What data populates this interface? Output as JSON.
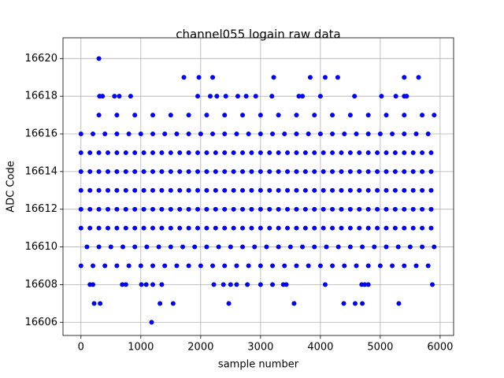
{
  "chart_data": {
    "type": "scatter",
    "title": "channel055 logain raw data",
    "x_label": "sample number",
    "y_label": "ADC Code",
    "color": "#0000ff",
    "grid": true,
    "xlim": [
      -300,
      6225
    ],
    "ylim": [
      16605.3,
      16621.1
    ],
    "xticks": [
      0,
      1000,
      2000,
      3000,
      4000,
      5000,
      6000
    ],
    "yticks": [
      16606,
      16608,
      16610,
      16612,
      16614,
      16616,
      16618,
      16620
    ],
    "x": [
      0,
      150,
      300,
      450,
      600,
      750,
      900,
      1050,
      1200,
      1350,
      1500,
      1650,
      1800,
      1950,
      2100,
      2250,
      2400,
      2550,
      2700,
      2850,
      3000,
      3150,
      3300,
      3450,
      3600,
      3750,
      3900,
      4050,
      4200,
      4350,
      4500,
      4650,
      4800,
      4950,
      5100,
      5250,
      5400,
      5550,
      5700,
      5850,
      0,
      150,
      300,
      450,
      600,
      750,
      900,
      1050,
      1200,
      1350,
      1500,
      1650,
      1800,
      1950,
      2100,
      2250,
      2400,
      2550,
      2700,
      2850,
      3000,
      3150,
      3300,
      3450,
      3600,
      3750,
      3900,
      4050,
      4200,
      4350,
      4500,
      4650,
      4800,
      4950,
      5100,
      5250,
      5400,
      5550,
      5700,
      5850,
      0,
      150,
      300,
      450,
      600,
      750,
      900,
      1050,
      1200,
      1350,
      1500,
      1650,
      1800,
      1950,
      2100,
      2250,
      2400,
      2550,
      2700,
      2850,
      3000,
      3150,
      3300,
      3450,
      3600,
      3750,
      3900,
      4050,
      4200,
      4350,
      4500,
      4650,
      4800,
      4950,
      5100,
      5250,
      5400,
      5550,
      5700,
      5850,
      0,
      150,
      300,
      450,
      600,
      750,
      900,
      1050,
      1200,
      1350,
      1500,
      1650,
      1800,
      1950,
      2100,
      2250,
      2400,
      2550,
      2700,
      2850,
      3000,
      3150,
      3300,
      3450,
      3600,
      3750,
      3900,
      4050,
      4200,
      4350,
      4500,
      4650,
      4800,
      4950,
      5100,
      5250,
      5400,
      5550,
      5700,
      5850,
      0,
      150,
      300,
      450,
      600,
      750,
      900,
      1050,
      1200,
      1350,
      1500,
      1650,
      1800,
      1950,
      2100,
      2250,
      2400,
      2550,
      2700,
      2850,
      3000,
      3150,
      3300,
      3450,
      3600,
      3750,
      3900,
      4050,
      4200,
      4350,
      4500,
      4650,
      4800,
      4950,
      5100,
      5250,
      5400,
      5550,
      5700,
      5850,
      0,
      200,
      400,
      600,
      800,
      1000,
      1200,
      1400,
      1600,
      1800,
      2000,
      2200,
      2400,
      2600,
      2800,
      3000,
      3200,
      3400,
      3600,
      3800,
      4000,
      4200,
      4400,
      4600,
      4800,
      5000,
      5200,
      5400,
      5600,
      5800,
      100,
      300,
      500,
      700,
      900,
      1100,
      1300,
      1500,
      1700,
      1900,
      2100,
      2300,
      2500,
      2700,
      2900,
      3100,
      3300,
      3500,
      3700,
      3900,
      4100,
      4300,
      4500,
      4700,
      4900,
      5100,
      5300,
      5500,
      5700,
      5900,
      0,
      200,
      400,
      600,
      800,
      1000,
      1200,
      1400,
      1600,
      1800,
      2000,
      2200,
      2400,
      2600,
      2800,
      3000,
      3200,
      3400,
      3600,
      3800,
      4000,
      4200,
      4400,
      4600,
      4800,
      5000,
      5200,
      5400,
      5600,
      5800,
      300,
      600,
      900,
      1200,
      1500,
      1800,
      2100,
      2400,
      2700,
      3000,
      3300,
      3600,
      3900,
      4200,
      4500,
      4800,
      5100,
      5400,
      5700,
      5900,
      300,
      1720,
      1970,
      2200,
      3220,
      3830,
      4080,
      4290,
      5400,
      5640,
      310,
      360,
      560,
      640,
      830,
      1950,
      2160,
      2270,
      2420,
      2620,
      2760,
      2920,
      3190,
      3640,
      3700,
      4000,
      4570,
      5020,
      5260,
      5400,
      5440,
      150,
      200,
      690,
      750,
      1010,
      1090,
      1200,
      1350,
      2220,
      2380,
      2500,
      2600,
      2780,
      3000,
      3200,
      3380,
      3430,
      4080,
      4690,
      4740,
      4800,
      5870,
      220,
      320,
      1320,
      1540,
      2470,
      3560,
      4390,
      4580,
      4700,
      5310,
      1180
    ],
    "values": [
      16611,
      16611,
      16611,
      16611,
      16611,
      16611,
      16611,
      16611,
      16611,
      16611,
      16611,
      16611,
      16611,
      16611,
      16611,
      16611,
      16611,
      16611,
      16611,
      16611,
      16611,
      16611,
      16611,
      16611,
      16611,
      16611,
      16611,
      16611,
      16611,
      16611,
      16611,
      16611,
      16611,
      16611,
      16611,
      16611,
      16611,
      16611,
      16611,
      16611,
      16612,
      16612,
      16612,
      16612,
      16612,
      16612,
      16612,
      16612,
      16612,
      16612,
      16612,
      16612,
      16612,
      16612,
      16612,
      16612,
      16612,
      16612,
      16612,
      16612,
      16612,
      16612,
      16612,
      16612,
      16612,
      16612,
      16612,
      16612,
      16612,
      16612,
      16612,
      16612,
      16612,
      16612,
      16612,
      16612,
      16612,
      16612,
      16612,
      16612,
      16613,
      16613,
      16613,
      16613,
      16613,
      16613,
      16613,
      16613,
      16613,
      16613,
      16613,
      16613,
      16613,
      16613,
      16613,
      16613,
      16613,
      16613,
      16613,
      16613,
      16613,
      16613,
      16613,
      16613,
      16613,
      16613,
      16613,
      16613,
      16613,
      16613,
      16613,
      16613,
      16613,
      16613,
      16613,
      16613,
      16613,
      16613,
      16613,
      16613,
      16614,
      16614,
      16614,
      16614,
      16614,
      16614,
      16614,
      16614,
      16614,
      16614,
      16614,
      16614,
      16614,
      16614,
      16614,
      16614,
      16614,
      16614,
      16614,
      16614,
      16614,
      16614,
      16614,
      16614,
      16614,
      16614,
      16614,
      16614,
      16614,
      16614,
      16614,
      16614,
      16614,
      16614,
      16614,
      16614,
      16614,
      16614,
      16614,
      16614,
      16615,
      16615,
      16615,
      16615,
      16615,
      16615,
      16615,
      16615,
      16615,
      16615,
      16615,
      16615,
      16615,
      16615,
      16615,
      16615,
      16615,
      16615,
      16615,
      16615,
      16615,
      16615,
      16615,
      16615,
      16615,
      16615,
      16615,
      16615,
      16615,
      16615,
      16615,
      16615,
      16615,
      16615,
      16615,
      16615,
      16615,
      16615,
      16615,
      16615,
      16616,
      16616,
      16616,
      16616,
      16616,
      16616,
      16616,
      16616,
      16616,
      16616,
      16616,
      16616,
      16616,
      16616,
      16616,
      16616,
      16616,
      16616,
      16616,
      16616,
      16616,
      16616,
      16616,
      16616,
      16616,
      16616,
      16616,
      16616,
      16616,
      16616,
      16610,
      16610,
      16610,
      16610,
      16610,
      16610,
      16610,
      16610,
      16610,
      16610,
      16610,
      16610,
      16610,
      16610,
      16610,
      16610,
      16610,
      16610,
      16610,
      16610,
      16610,
      16610,
      16610,
      16610,
      16610,
      16610,
      16610,
      16610,
      16610,
      16610,
      16609,
      16609,
      16609,
      16609,
      16609,
      16609,
      16609,
      16609,
      16609,
      16609,
      16609,
      16609,
      16609,
      16609,
      16609,
      16609,
      16609,
      16609,
      16609,
      16609,
      16609,
      16609,
      16609,
      16609,
      16609,
      16609,
      16609,
      16609,
      16609,
      16609,
      16617,
      16617,
      16617,
      16617,
      16617,
      16617,
      16617,
      16617,
      16617,
      16617,
      16617,
      16617,
      16617,
      16617,
      16617,
      16617,
      16617,
      16617,
      16617,
      16617,
      16620,
      16619,
      16619,
      16619,
      16619,
      16619,
      16619,
      16619,
      16619,
      16619,
      16618,
      16618,
      16618,
      16618,
      16618,
      16618,
      16618,
      16618,
      16618,
      16618,
      16618,
      16618,
      16618,
      16618,
      16618,
      16618,
      16618,
      16618,
      16618,
      16618,
      16618,
      16608,
      16608,
      16608,
      16608,
      16608,
      16608,
      16608,
      16608,
      16608,
      16608,
      16608,
      16608,
      16608,
      16608,
      16608,
      16608,
      16608,
      16608,
      16608,
      16608,
      16608,
      16608,
      16607,
      16607,
      16607,
      16607,
      16607,
      16607,
      16607,
      16607,
      16607,
      16607,
      16606
    ]
  }
}
